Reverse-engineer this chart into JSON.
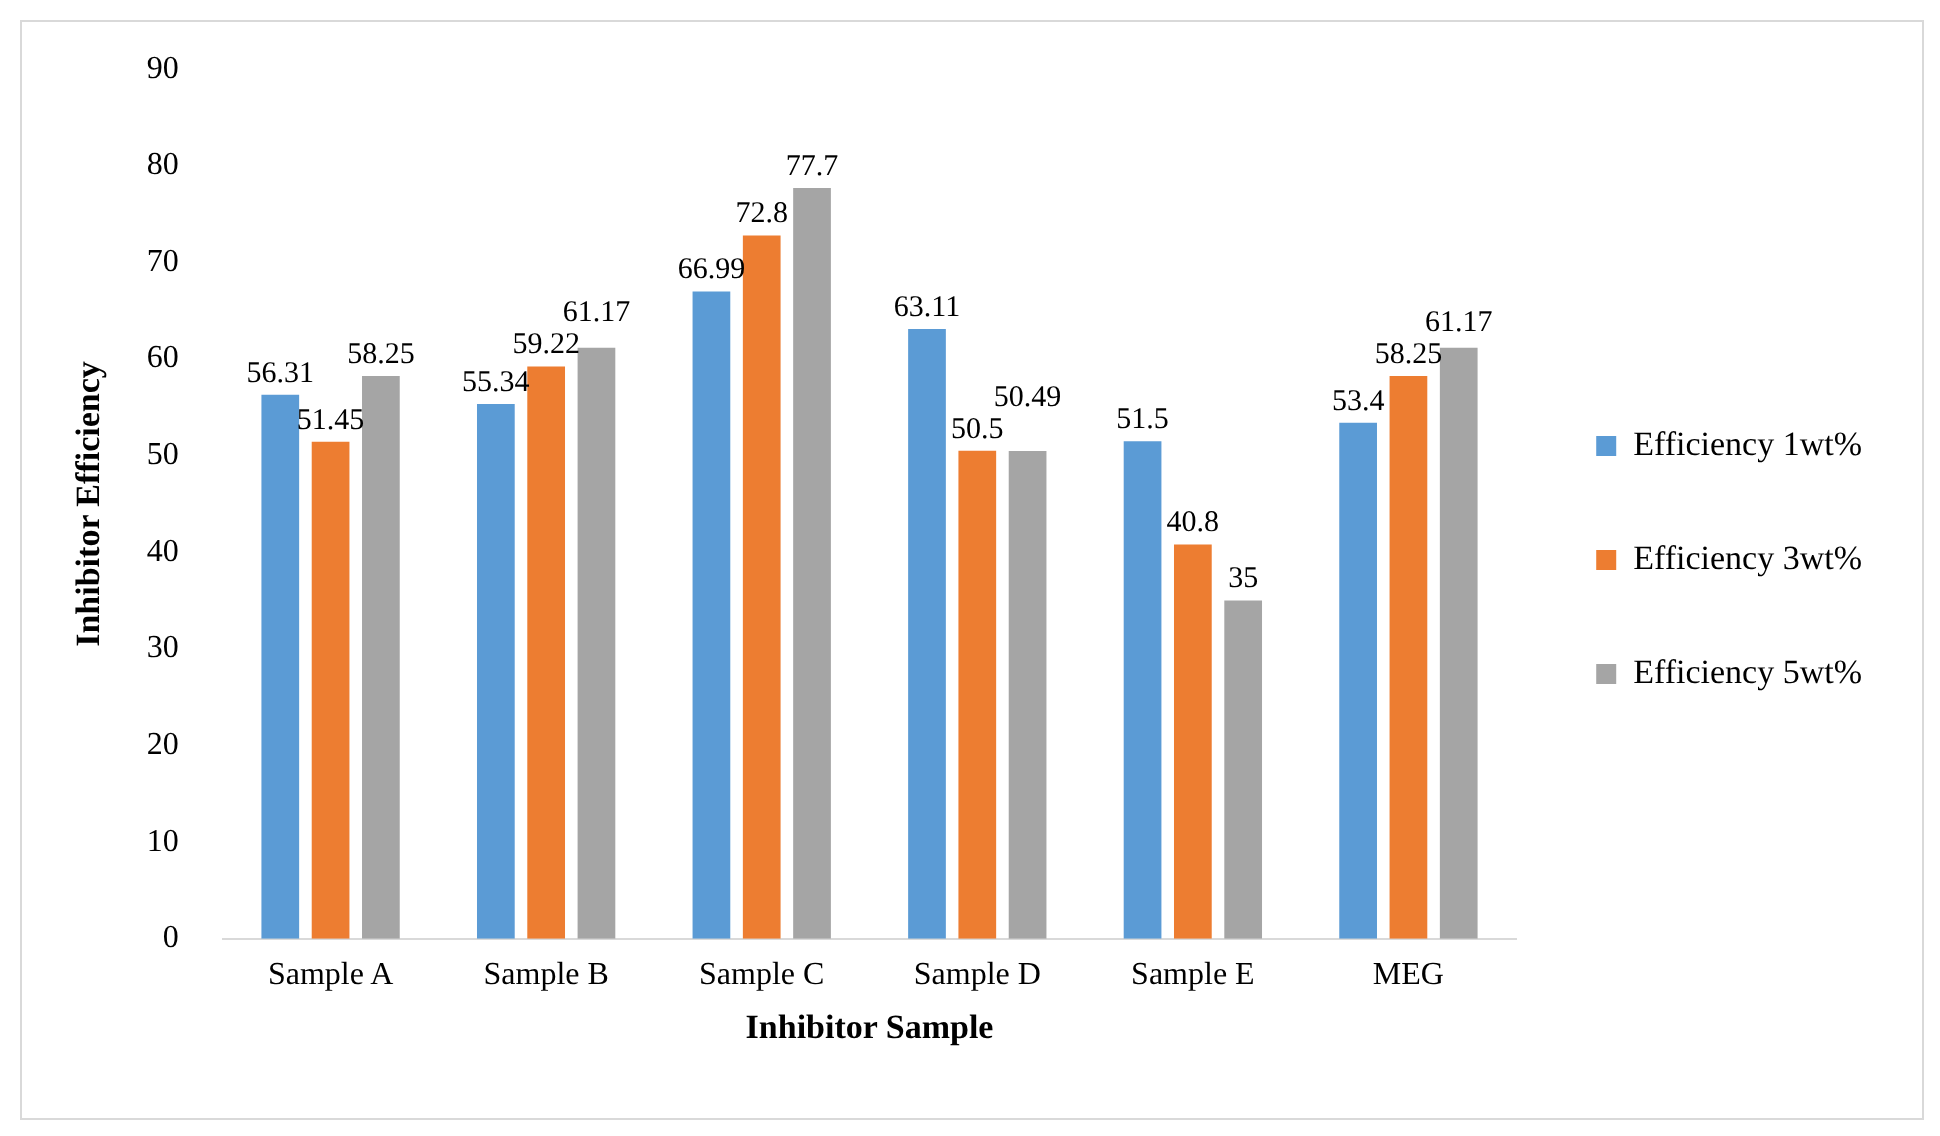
{
  "chart_data": {
    "type": "bar",
    "xlabel": "Inhibitor Sample",
    "ylabel": "Inhibitor Efficiency",
    "categories": [
      "Sample A",
      "Sample B",
      "Sample C",
      "Sample D",
      "Sample E",
      "MEG"
    ],
    "series": [
      {
        "name": "Efficiency 1wt%",
        "color": "#5b9bd5",
        "values": [
          56.31,
          55.34,
          66.99,
          63.11,
          51.5,
          53.4
        ]
      },
      {
        "name": "Efficiency 3wt%",
        "color": "#ed7d31",
        "values": [
          51.45,
          59.22,
          72.8,
          50.5,
          40.8,
          58.25
        ]
      },
      {
        "name": "Efficiency 5wt%",
        "color": "#a5a5a5",
        "values": [
          58.25,
          61.17,
          77.7,
          50.49,
          35,
          61.17
        ]
      }
    ],
    "ylim": [
      0,
      90
    ],
    "yticks": [
      0,
      10,
      20,
      30,
      40,
      50,
      60,
      70,
      80,
      90
    ],
    "grid": false,
    "legend": "right",
    "data_labels": true
  }
}
